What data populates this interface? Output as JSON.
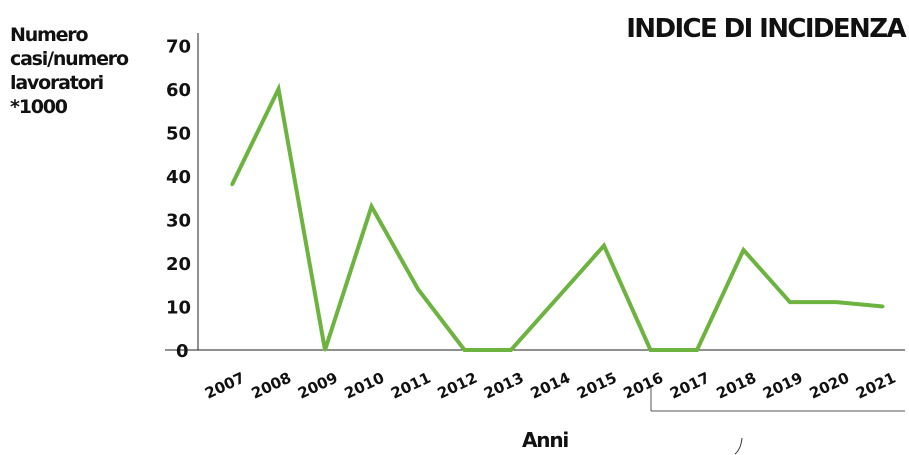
{
  "chart_data": {
    "type": "line",
    "title": "INDICE DI INCIDENZA",
    "ylabel_lines": [
      "Numero",
      "casi/numero",
      "lavoratori",
      "*1000"
    ],
    "xlabel": "Anni",
    "x": [
      "2007",
      "2008",
      "2009",
      "2010",
      "2011",
      "2012",
      "2013",
      "2014",
      "2015",
      "2016",
      "2017",
      "2018",
      "2019",
      "2020",
      "2021"
    ],
    "series": [
      {
        "values": [
          38,
          60,
          0,
          33,
          14,
          0,
          0,
          12,
          24,
          0,
          0,
          23,
          11,
          11,
          10
        ]
      }
    ],
    "ylim": [
      0,
      70
    ],
    "yticks": [
      0,
      10,
      20,
      30,
      40,
      50,
      60,
      70
    ],
    "grid": false,
    "line_color": "#6db33f"
  }
}
